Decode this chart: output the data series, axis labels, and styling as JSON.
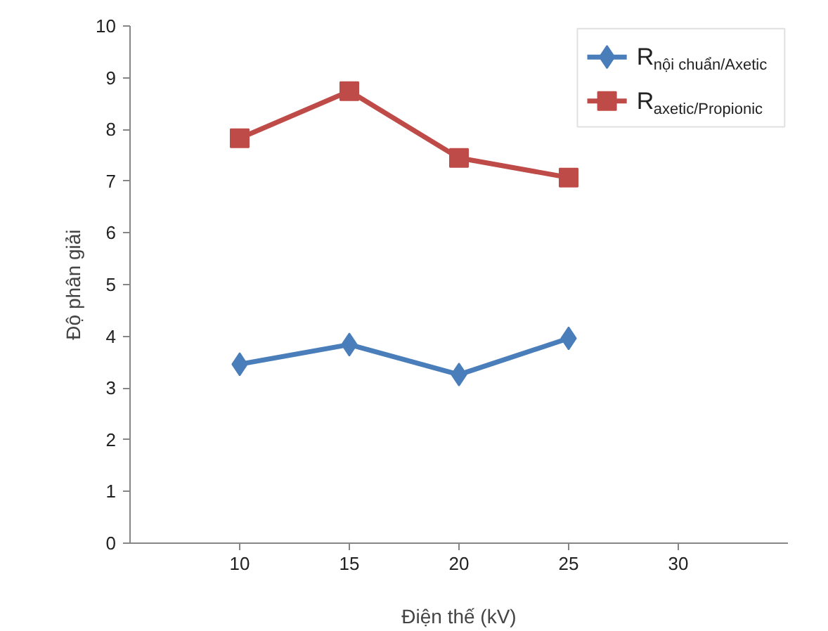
{
  "chart_data": {
    "type": "line",
    "xlabel": "Điện thế (kV)",
    "ylabel": "Độ phân giải",
    "x": [
      10,
      15,
      20,
      25
    ],
    "series": [
      {
        "name": "R$_{nội chuẩn/Axetic}$",
        "color": "#4a7ebb",
        "marker": "diamond",
        "values": [
          3.46,
          3.84,
          3.26,
          3.96
        ]
      },
      {
        "name": "R$_{axetic/Propionic}$",
        "color": "#be4b48",
        "marker": "square",
        "values": [
          7.83,
          8.74,
          7.45,
          7.07
        ]
      }
    ],
    "xlim": [
      5,
      35
    ],
    "xticks": [
      10,
      15,
      20,
      25,
      30
    ],
    "ylim": [
      0,
      10
    ],
    "yticks": [
      0,
      1,
      2,
      3,
      4,
      5,
      6,
      7,
      8,
      9,
      10
    ],
    "grid": false,
    "legend": "top right",
    "line_style": "solid"
  }
}
